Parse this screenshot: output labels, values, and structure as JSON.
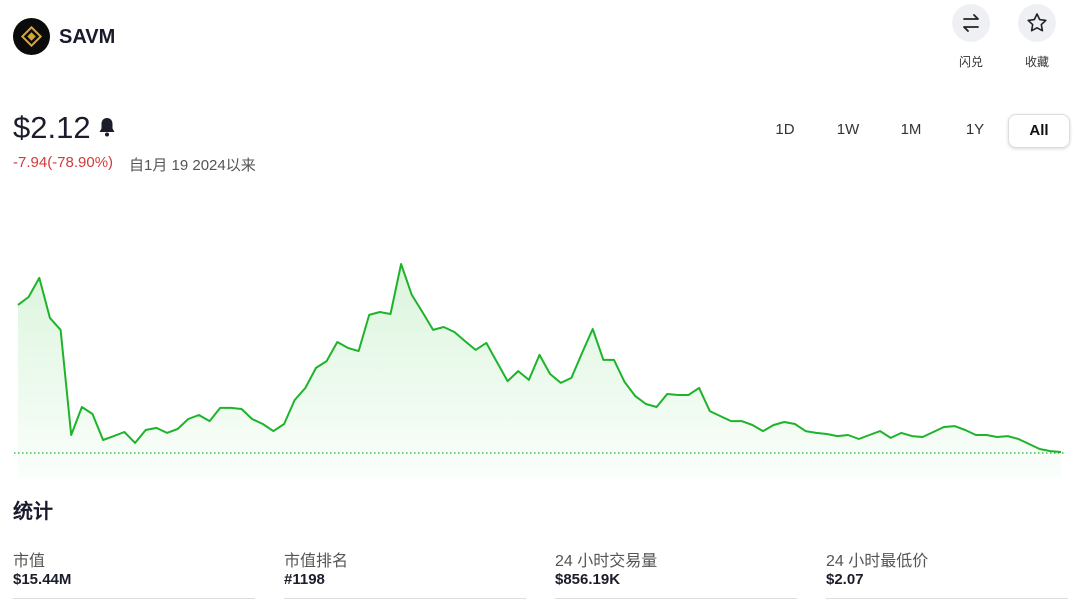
{
  "header": {
    "name": "SAVM",
    "actions": [
      "闪兑",
      "收藏"
    ]
  },
  "price": {
    "current": "$2.12",
    "change": "-7.94(-78.90%)",
    "since": "自1月 19 2024以来"
  },
  "ranges": [
    "1D",
    "1W",
    "1M",
    "1Y",
    "All"
  ],
  "chart_data": {
    "type": "line",
    "color": "#1db42a",
    "values": [
      10.06,
      10.49,
      11.52,
      9.36,
      8.71,
      3.04,
      4.55,
      4.17,
      2.77,
      2.98,
      3.2,
      2.61,
      3.31,
      3.42,
      3.15,
      3.36,
      3.9,
      4.12,
      3.79,
      4.5,
      4.5,
      4.44,
      3.9,
      3.63,
      3.25,
      3.63,
      4.93,
      5.58,
      6.66,
      7.03,
      8.06,
      7.74,
      7.57,
      9.52,
      9.68,
      9.57,
      12.27,
      10.6,
      9.68,
      8.71,
      8.87,
      8.6,
      8.11,
      7.63,
      8.01,
      6.98,
      5.95,
      6.49,
      6.01,
      7.36,
      6.33,
      5.85,
      6.12,
      7.47,
      8.76,
      7.09,
      7.09,
      5.9,
      5.14,
      4.71,
      4.55,
      5.25,
      5.2,
      5.2,
      5.58,
      4.33,
      4.06,
      3.79,
      3.79,
      3.58,
      3.25,
      3.58,
      3.74,
      3.63,
      3.25,
      3.15,
      3.09,
      2.98,
      3.04,
      2.82,
      3.04,
      3.25,
      2.88,
      3.15,
      2.98,
      2.93,
      3.2,
      3.47,
      3.52,
      3.31,
      3.04,
      3.04,
      2.93,
      2.98,
      2.82,
      2.55,
      2.28,
      2.17,
      2.12
    ]
  },
  "stats": {
    "title": "统计",
    "items": [
      {
        "label": "市值",
        "value": "$15.44M"
      },
      {
        "label": "市值排名",
        "value": "#1198"
      },
      {
        "label": "24 小时交易量",
        "value": "$856.19K"
      },
      {
        "label": "24 小时最低价",
        "value": "$2.07"
      }
    ]
  }
}
